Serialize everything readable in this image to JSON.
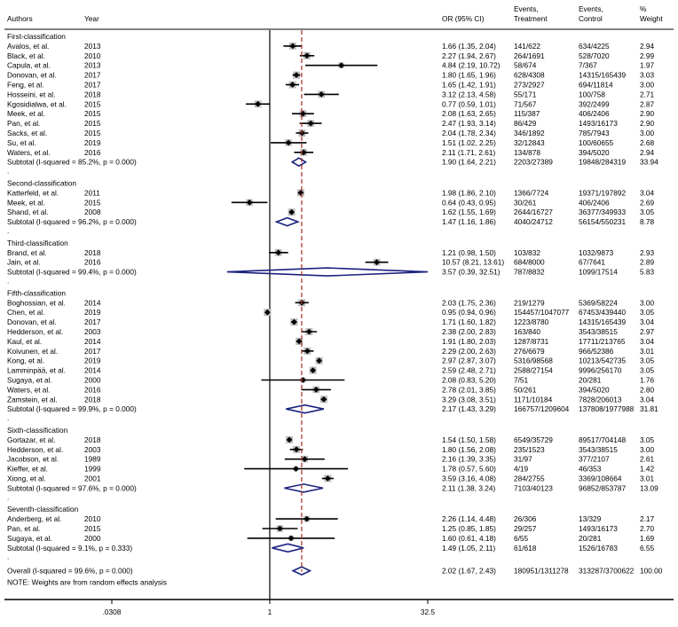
{
  "chart_data": {
    "type": "forest",
    "title": "",
    "xscale": "log",
    "xlim": [
      0.0308,
      32.5
    ],
    "xticks": [
      {
        "value": 0.0308,
        "label": ".0308"
      },
      {
        "value": 1,
        "label": "1"
      },
      {
        "value": 32.5,
        "label": "32.5"
      }
    ],
    "overall_line": 2.02,
    "headers": {
      "authors": "Authors",
      "year": "Year",
      "or": "OR (95% CI)",
      "events_treatment": [
        "Events,",
        "Treatment"
      ],
      "events_control": [
        "Events,",
        "Control"
      ],
      "weight": [
        "%",
        "Weight"
      ]
    },
    "groups": [
      {
        "name": "First-classification",
        "studies": [
          {
            "author": "Avalos, et al.",
            "year": "2013",
            "or": 1.66,
            "lo": 1.35,
            "hi": 2.04,
            "ci": "1.66 (1.35, 2.04)",
            "et": "141/622",
            "ec": "634/4225",
            "w": "2.94"
          },
          {
            "author": "Black, et al.",
            "year": "2010",
            "or": 2.27,
            "lo": 1.94,
            "hi": 2.67,
            "ci": "2.27 (1.94, 2.67)",
            "et": "264/1691",
            "ec": "528/7020",
            "w": "2.99"
          },
          {
            "author": "Capula, et al.",
            "year": "2013",
            "or": 4.84,
            "lo": 2.19,
            "hi": 10.72,
            "ci": "4.84 (2.19, 10.72)",
            "et": "58/674",
            "ec": "7/367",
            "w": "1.97"
          },
          {
            "author": "Donovan, et al.",
            "year": "2017",
            "or": 1.8,
            "lo": 1.65,
            "hi": 1.96,
            "ci": "1.80 (1.65, 1.96)",
            "et": "628/4308",
            "ec": "14315/165439",
            "w": "3.03"
          },
          {
            "author": "Feng, et al.",
            "year": "2017",
            "or": 1.65,
            "lo": 1.42,
            "hi": 1.91,
            "ci": "1.65 (1.42, 1.91)",
            "et": "273/2927",
            "ec": "694/11814",
            "w": "3.00"
          },
          {
            "author": "Hosseini, et al.",
            "year": "2018",
            "or": 3.12,
            "lo": 2.13,
            "hi": 4.58,
            "ci": "3.12 (2.13, 4.58)",
            "et": "55/171",
            "ec": "100/758",
            "w": "2.71"
          },
          {
            "author": "Kgosidialwa, et al.",
            "year": "2015",
            "or": 0.77,
            "lo": 0.59,
            "hi": 1.01,
            "ci": "0.77 (0.59, 1.01)",
            "et": "71/567",
            "ec": "392/2499",
            "w": "2.87"
          },
          {
            "author": "Meek, et al.",
            "year": "2015",
            "or": 2.08,
            "lo": 1.63,
            "hi": 2.65,
            "ci": "2.08 (1.63, 2.65)",
            "et": "115/387",
            "ec": "406/2406",
            "w": "2.90"
          },
          {
            "author": "Pan, et al.",
            "year": "2015",
            "or": 2.47,
            "lo": 1.93,
            "hi": 3.14,
            "ci": "2.47 (1.93, 3.14)",
            "et": "86/429",
            "ec": "1493/16173",
            "w": "2.90"
          },
          {
            "author": "Sacks, et al.",
            "year": "2015",
            "or": 2.04,
            "lo": 1.78,
            "hi": 2.34,
            "ci": "2.04 (1.78, 2.34)",
            "et": "346/1892",
            "ec": "785/7943",
            "w": "3.00"
          },
          {
            "author": "Su, et al.",
            "year": "2019",
            "or": 1.51,
            "lo": 1.02,
            "hi": 2.25,
            "ci": "1.51 (1.02, 2.25)",
            "et": "32/12843",
            "ec": "100/60655",
            "w": "2.68"
          },
          {
            "author": "Waters, et al.",
            "year": "2016",
            "or": 2.11,
            "lo": 1.71,
            "hi": 2.61,
            "ci": "2.11 (1.71, 2.61)",
            "et": "134/878",
            "ec": "394/5020",
            "w": "2.94"
          }
        ],
        "subtotal": {
          "label": "Subtotal  (I-squared = 85.2%, p = 0.000)",
          "or": 1.9,
          "lo": 1.64,
          "hi": 2.21,
          "ci": "1.90 (1.64, 2.21)",
          "et": "2203/27389",
          "ec": "19848/284319",
          "w": "33.94"
        }
      },
      {
        "name": "Second-classification",
        "studies": [
          {
            "author": "Katterfeld, et al.",
            "year": "2011",
            "or": 1.98,
            "lo": 1.86,
            "hi": 2.1,
            "ci": "1.98 (1.86, 2.10)",
            "et": "1366/7724",
            "ec": "19371/197892",
            "w": "3.04"
          },
          {
            "author": "Meek, et al.",
            "year": "2015",
            "or": 0.64,
            "lo": 0.43,
            "hi": 0.95,
            "ci": "0.64 (0.43, 0.95)",
            "et": "30/261",
            "ec": "406/2406",
            "w": "2.69"
          },
          {
            "author": "Shand, et al.",
            "year": "2008",
            "or": 1.62,
            "lo": 1.55,
            "hi": 1.69,
            "ci": "1.62 (1.55, 1.69)",
            "et": "2644/16727",
            "ec": "36377/349933",
            "w": "3.05"
          }
        ],
        "subtotal": {
          "label": "Subtotal  (I-squared = 96.2%, p = 0.000)",
          "or": 1.47,
          "lo": 1.16,
          "hi": 1.86,
          "ci": "1.47 (1.16, 1.86)",
          "et": "4040/24712",
          "ec": "56154/550231",
          "w": "8.78"
        }
      },
      {
        "name": "Third-classification",
        "studies": [
          {
            "author": "Brand, et al.",
            "year": "2018",
            "or": 1.21,
            "lo": 0.98,
            "hi": 1.5,
            "ci": "1.21 (0.98, 1.50)",
            "et": "103/832",
            "ec": "1032/9873",
            "w": "2.93"
          },
          {
            "author": "Jain, et al.",
            "year": "2016",
            "or": 10.57,
            "lo": 8.21,
            "hi": 13.61,
            "ci": "10.57 (8.21, 13.61)",
            "et": "684/8000",
            "ec": "67/7641",
            "w": "2.89"
          }
        ],
        "subtotal": {
          "label": "Subtotal  (I-squared = 99.4%, p = 0.000)",
          "or": 3.57,
          "lo": 0.39,
          "hi": 32.51,
          "ci": "3.57 (0.39, 32.51)",
          "et": "787/8832",
          "ec": "1099/17514",
          "w": "5.83"
        }
      },
      {
        "name": "Fifth-classification",
        "studies": [
          {
            "author": "Boghossian, et al.",
            "year": "2014",
            "or": 2.03,
            "lo": 1.75,
            "hi": 2.36,
            "ci": "2.03 (1.75, 2.36)",
            "et": "219/1279",
            "ec": "5369/58224",
            "w": "3.00"
          },
          {
            "author": "Chen, et al.",
            "year": "2019",
            "or": 0.95,
            "lo": 0.94,
            "hi": 0.96,
            "ci": "0.95 (0.94, 0.96)",
            "et": "154457/1047077",
            "ec": "67453/439440",
            "w": "3.05"
          },
          {
            "author": "Donovan, et al.",
            "year": "2017",
            "or": 1.71,
            "lo": 1.6,
            "hi": 1.82,
            "ci": "1.71 (1.60, 1.82)",
            "et": "1223/8780",
            "ec": "14315/165439",
            "w": "3.04"
          },
          {
            "author": "Hedderson, et al.",
            "year": "2003",
            "or": 2.38,
            "lo": 2.0,
            "hi": 2.83,
            "ci": "2.38 (2.00, 2.83)",
            "et": "163/840",
            "ec": "3543/38515",
            "w": "2.97"
          },
          {
            "author": "Kaul, et al.",
            "year": "2014",
            "or": 1.91,
            "lo": 1.8,
            "hi": 2.03,
            "ci": "1.91 (1.80, 2.03)",
            "et": "1287/8731",
            "ec": "17711/213765",
            "w": "3.04"
          },
          {
            "author": "Koivunen, et al.",
            "year": "2017",
            "or": 2.29,
            "lo": 2.0,
            "hi": 2.63,
            "ci": "2.29 (2.00, 2.63)",
            "et": "276/6679",
            "ec": "966/52386",
            "w": "3.01"
          },
          {
            "author": "Kong, et al.",
            "year": "2019",
            "or": 2.97,
            "lo": 2.87,
            "hi": 3.07,
            "ci": "2.97 (2.87, 3.07)",
            "et": "5316/98568",
            "ec": "10213/542735",
            "w": "3.05"
          },
          {
            "author": "Lamminpää, et al.",
            "year": "2014",
            "or": 2.59,
            "lo": 2.48,
            "hi": 2.71,
            "ci": "2.59 (2.48, 2.71)",
            "et": "2588/27154",
            "ec": "9996/256170",
            "w": "3.05"
          },
          {
            "author": "Sugaya, et al.",
            "year": "2000",
            "or": 2.08,
            "lo": 0.83,
            "hi": 5.2,
            "ci": "2.08 (0.83, 5.20)",
            "et": "7/51",
            "ec": "20/281",
            "w": "1.76"
          },
          {
            "author": "Waters, et al.",
            "year": "2016",
            "or": 2.78,
            "lo": 2.01,
            "hi": 3.85,
            "ci": "2.78 (2.01, 3.85)",
            "et": "50/261",
            "ec": "394/5020",
            "w": "2.80"
          },
          {
            "author": "Zamstein, et al.",
            "year": "2018",
            "or": 3.29,
            "lo": 3.08,
            "hi": 3.51,
            "ci": "3.29 (3.08, 3.51)",
            "et": "1171/10184",
            "ec": "7828/206013",
            "w": "3.04"
          }
        ],
        "subtotal": {
          "label": "Subtotal  (I-squared = 99.9%, p = 0.000)",
          "or": 2.17,
          "lo": 1.43,
          "hi": 3.29,
          "ci": "2.17 (1.43, 3.29)",
          "et": "166757/1209604",
          "ec": "137808/1977988",
          "w": "31.81"
        }
      },
      {
        "name": "Sixth-classification",
        "studies": [
          {
            "author": "Gortazar, et al.",
            "year": "2018",
            "or": 1.54,
            "lo": 1.5,
            "hi": 1.58,
            "ci": "1.54 (1.50, 1.58)",
            "et": "6549/35729",
            "ec": "89517/704148",
            "w": "3.05"
          },
          {
            "author": "Hedderson, et al.",
            "year": "2003",
            "or": 1.8,
            "lo": 1.56,
            "hi": 2.08,
            "ci": "1.80 (1.56, 2.08)",
            "et": "235/1523",
            "ec": "3543/38515",
            "w": "3.00"
          },
          {
            "author": "Jacobson, et al.",
            "year": "1989",
            "or": 2.16,
            "lo": 1.39,
            "hi": 3.35,
            "ci": "2.16 (1.39, 3.35)",
            "et": "31/97",
            "ec": "377/2107",
            "w": "2.61"
          },
          {
            "author": "Kieffer, et al.",
            "year": "1999",
            "or": 1.78,
            "lo": 0.57,
            "hi": 5.6,
            "ci": "1.78 (0.57, 5.60)",
            "et": "4/19",
            "ec": "46/353",
            "w": "1.42"
          },
          {
            "author": "Xiong, et al.",
            "year": "2001",
            "or": 3.59,
            "lo": 3.16,
            "hi": 4.08,
            "ci": "3.59 (3.16, 4.08)",
            "et": "284/2755",
            "ec": "3369/108664",
            "w": "3.01"
          }
        ],
        "subtotal": {
          "label": "Subtotal  (I-squared = 97.6%, p = 0.000)",
          "or": 2.11,
          "lo": 1.38,
          "hi": 3.24,
          "ci": "2.11 (1.38, 3.24)",
          "et": "7103/40123",
          "ec": "96852/853787",
          "w": "13.09"
        }
      },
      {
        "name": "Seventh-classification",
        "studies": [
          {
            "author": "Anderberg, et al.",
            "year": "2010",
            "or": 2.26,
            "lo": 1.14,
            "hi": 4.48,
            "ci": "2.26 (1.14, 4.48)",
            "et": "26/306",
            "ec": "13/329",
            "w": "2.17"
          },
          {
            "author": "Pan, et al.",
            "year": "2015",
            "or": 1.25,
            "lo": 0.85,
            "hi": 1.85,
            "ci": "1.25 (0.85, 1.85)",
            "et": "29/257",
            "ec": "1493/16173",
            "w": "2.70"
          },
          {
            "author": "Sugaya, et al.",
            "year": "2000",
            "or": 1.6,
            "lo": 0.61,
            "hi": 4.18,
            "ci": "1.60 (0.61, 4.18)",
            "et": "6/55",
            "ec": "20/281",
            "w": "1.69"
          }
        ],
        "subtotal": {
          "label": "Subtotal  (I-squared = 9.1%, p = 0.333)",
          "or": 1.49,
          "lo": 1.05,
          "hi": 2.11,
          "ci": "1.49 (1.05, 2.11)",
          "et": "61/618",
          "ec": "1526/16783",
          "w": "6.55"
        }
      }
    ],
    "overall": {
      "label": "Overall  (I-squared = 99.6%, p = 0.000)",
      "or": 2.02,
      "lo": 1.67,
      "hi": 2.43,
      "ci": "2.02 (1.67, 2.43)",
      "et": "180951/1311278",
      "ec": "313287/3700622",
      "w": "100.00"
    },
    "note": "NOTE: Weights are from random effects analysis"
  }
}
